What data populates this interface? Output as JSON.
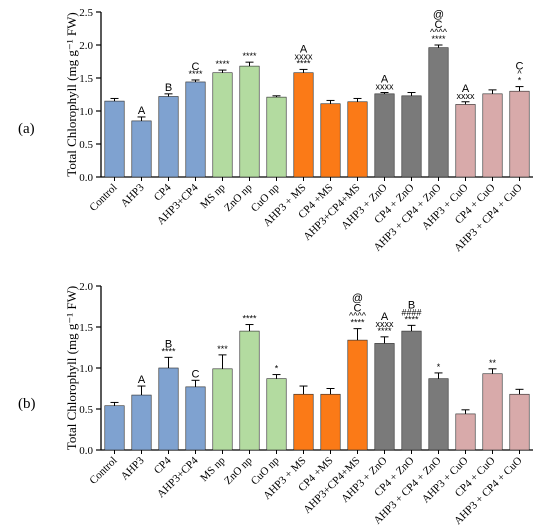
{
  "colors": {
    "blue": "#7fa2d0",
    "green": "#b3dba0",
    "orange": "#fb7a17",
    "gray": "#7a7a7a",
    "pink": "#d8aaaa"
  },
  "chart_data": [
    {
      "type": "bar",
      "panel_label": "(a)",
      "ylabel": "Total Chlorophyll (mg g⁻¹ FW)",
      "ylim": [
        0,
        2.5
      ],
      "yticks": [
        "0.0",
        "0.5",
        "1.0",
        "1.5",
        "2.0",
        "2.5"
      ],
      "categories": [
        "Control",
        "AHP3",
        "CP4",
        "AHP3+CP4",
        "MS np",
        "ZnO np",
        "CuO np",
        "AHP3 + MS",
        "CP4 +MS",
        "AHP3+CP4+MS",
        "AHP3 + ZnO",
        "CP4 + ZnO",
        "AHP3 + CP4 + ZnO",
        "AHP3 + CuO",
        "CP4 + CuO",
        "AHP3 + CP4 + CuO"
      ],
      "values": [
        1.15,
        0.85,
        1.22,
        1.44,
        1.58,
        1.68,
        1.21,
        1.58,
        1.11,
        1.14,
        1.26,
        1.23,
        1.96,
        1.1,
        1.26,
        1.3
      ],
      "errors": [
        0.04,
        0.06,
        0.04,
        0.03,
        0.04,
        0.06,
        0.02,
        0.05,
        0.05,
        0.05,
        0.02,
        0.05,
        0.04,
        0.04,
        0.06,
        0.07
      ],
      "bar_colors": [
        "blue",
        "blue",
        "blue",
        "blue",
        "green",
        "green",
        "green",
        "orange",
        "orange",
        "orange",
        "gray",
        "gray",
        "gray",
        "pink",
        "pink",
        "pink"
      ],
      "annotations": [
        [],
        [
          "A"
        ],
        [
          "B"
        ],
        [
          "C",
          "****"
        ],
        [
          "****"
        ],
        [
          "****"
        ],
        [],
        [
          "A",
          "xxxx",
          "****"
        ],
        [],
        [],
        [
          "A",
          "xxxx"
        ],
        [],
        [
          "@",
          "C",
          "^^^^",
          "****"
        ],
        [
          "A",
          "xxxx"
        ],
        [],
        [
          "C",
          "^",
          "*"
        ]
      ]
    },
    {
      "type": "bar",
      "panel_label": "(b)",
      "ylabel": "Total Chlorophyll (mg g⁻¹ FW)",
      "ylim": [
        0,
        2.0
      ],
      "yticks": [
        "0.0",
        "0.5",
        "1.0",
        "1.5",
        "2.0"
      ],
      "categories": [
        "Control",
        "AHP3",
        "CP4",
        "AHP3+CP4",
        "MS np",
        "ZnO np",
        "CuO np",
        "AHP3 + MS",
        "CP4 +MS",
        "AHP3+CP4+MS",
        "AHP3 + ZnO",
        "CP4 + ZnO",
        "AHP3 + CP4 + ZnO",
        "AHP3 + CuO",
        "CP4 + CuO",
        "AHP3 + CP4 + CuO"
      ],
      "values": [
        0.54,
        0.67,
        1.0,
        0.77,
        0.99,
        1.45,
        0.87,
        0.68,
        0.68,
        1.34,
        1.3,
        1.45,
        0.87,
        0.44,
        0.93,
        0.68
      ],
      "errors": [
        0.04,
        0.11,
        0.13,
        0.08,
        0.17,
        0.08,
        0.05,
        0.1,
        0.07,
        0.14,
        0.08,
        0.07,
        0.07,
        0.05,
        0.06,
        0.06
      ],
      "bar_colors": [
        "blue",
        "blue",
        "blue",
        "blue",
        "green",
        "green",
        "green",
        "orange",
        "orange",
        "orange",
        "gray",
        "gray",
        "gray",
        "pink",
        "pink",
        "pink"
      ],
      "annotations": [
        [],
        [
          "A"
        ],
        [
          "B",
          "****"
        ],
        [
          "C"
        ],
        [
          "***"
        ],
        [
          "****"
        ],
        [
          "*"
        ],
        [],
        [],
        [
          "@",
          "C",
          "^^^^",
          "****"
        ],
        [
          "A",
          "xxxx",
          "****"
        ],
        [
          "B",
          "####",
          "****"
        ],
        [
          "*"
        ],
        [],
        [
          "**"
        ],
        []
      ]
    }
  ]
}
